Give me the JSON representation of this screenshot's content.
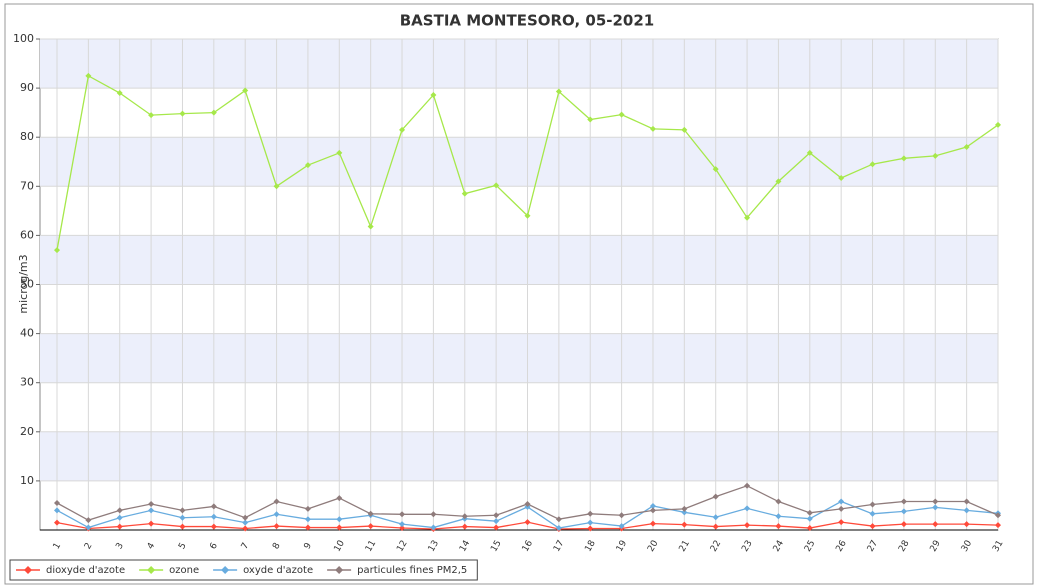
{
  "chart_data": {
    "type": "line",
    "title": "BASTIA MONTESORO, 05-2021",
    "y_label": "microg/m3",
    "categories": [
      "1",
      "2",
      "3",
      "4",
      "5",
      "6",
      "7",
      "8",
      "9",
      "10",
      "11",
      "12",
      "13",
      "14",
      "15",
      "16",
      "17",
      "18",
      "19",
      "20",
      "21",
      "22",
      "23",
      "24",
      "25",
      "26",
      "27",
      "28",
      "29",
      "30",
      "31"
    ],
    "series": [
      {
        "name": "dioxyde d'azote",
        "color": "#ff4a3a",
        "values": [
          1.5,
          0.3,
          0.7,
          1.3,
          0.7,
          0.7,
          0.3,
          0.8,
          0.5,
          0.5,
          0.8,
          0.4,
          0.2,
          0.7,
          0.5,
          1.6,
          0.2,
          0.3,
          0.3,
          1.3,
          1.1,
          0.7,
          1.0,
          0.8,
          0.4,
          1.6,
          0.8,
          1.2,
          1.2,
          1.2,
          1.0
        ]
      },
      {
        "name": "ozone",
        "color": "#a6e84a",
        "values": [
          57,
          92.5,
          89,
          84.5,
          84.8,
          85,
          89.5,
          70,
          74.3,
          76.8,
          61.8,
          81.5,
          88.6,
          68.5,
          70.2,
          64,
          89.3,
          83.6,
          84.6,
          81.7,
          81.5,
          73.5,
          63.6,
          71,
          76.8,
          71.7,
          74.5,
          75.7,
          76.2,
          78,
          82.5
        ]
      },
      {
        "name": "oxyde d'azote",
        "color": "#68acdf",
        "values": [
          4,
          0.5,
          2.5,
          4,
          2.5,
          2.7,
          1.5,
          3.2,
          2.2,
          2.2,
          3,
          1.2,
          0.5,
          2.3,
          1.8,
          4.7,
          0.4,
          1.5,
          0.8,
          4.9,
          3.6,
          2.6,
          4.4,
          2.8,
          2.3,
          5.8,
          3.3,
          3.8,
          4.6,
          4,
          3.4
        ]
      },
      {
        "name": "particules fines PM2,5",
        "color": "#8f7c7c",
        "values": [
          5.5,
          2,
          4,
          5.3,
          4,
          4.8,
          2.5,
          5.8,
          4.3,
          6.5,
          3.3,
          3.2,
          3.2,
          2.8,
          3,
          5.3,
          2.2,
          3.3,
          3,
          4,
          4.3,
          6.8,
          9,
          5.8,
          3.5,
          4.3,
          5.2,
          5.8,
          5.8,
          5.8,
          3
        ]
      }
    ],
    "ylim": [
      0,
      100
    ],
    "yticks": [
      10,
      20,
      30,
      40,
      50,
      60,
      70,
      80,
      90,
      100
    ],
    "grid": true,
    "band_color": "#eceffb"
  }
}
